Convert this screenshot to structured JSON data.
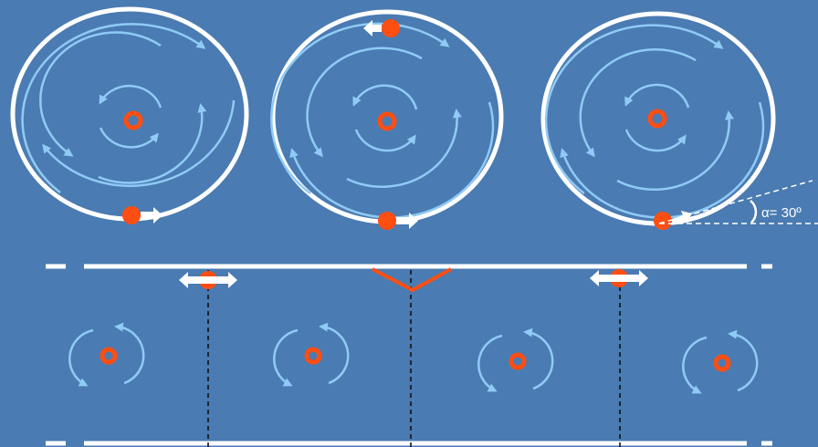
{
  "colors": {
    "background": "#4a7bb2",
    "ring": "#ffffff",
    "flow_arrow": "#8fcbf5",
    "particle": "#ff4e12",
    "dashed_line": "#111111",
    "wall": "#ffffff"
  },
  "annotations": {
    "angle_label": "α= 30º"
  }
}
